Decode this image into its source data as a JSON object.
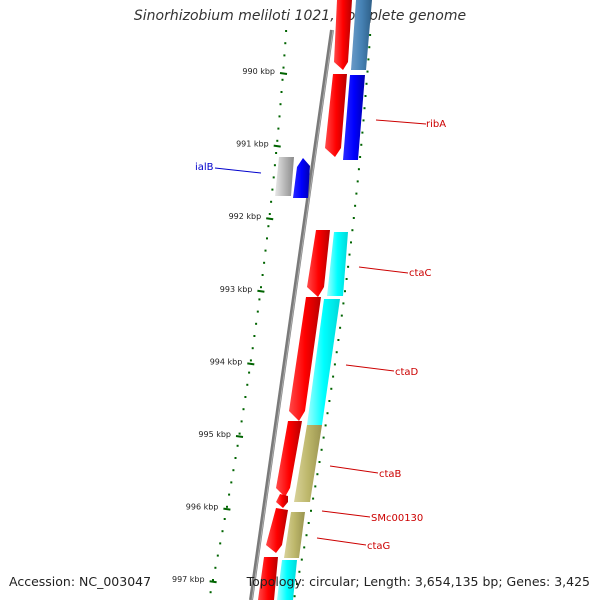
{
  "title": "Sinorhizobium meliloti 1021, complete genome",
  "accession": "Accession: NC_003047",
  "topology": "Topology: circular; Length: 3,654,135 bp; Genes: 3,425",
  "ticks": [
    {
      "kbp": 990,
      "label": "990 kbp"
    },
    {
      "kbp": 991,
      "label": "991 kbp"
    },
    {
      "kbp": 992,
      "label": "992 kbp"
    },
    {
      "kbp": 993,
      "label": "993 kbp"
    },
    {
      "kbp": 994,
      "label": "994 kbp"
    },
    {
      "kbp": 995,
      "label": "995 kbp"
    },
    {
      "kbp": 996,
      "label": "996 kbp"
    },
    {
      "kbp": 997,
      "label": "997 kbp"
    }
  ],
  "gene_labels": [
    {
      "name": "ialB",
      "color": "#0000cc"
    },
    {
      "name": "ribA",
      "color": "#cc0000"
    },
    {
      "name": "ctaC",
      "color": "#cc0000"
    },
    {
      "name": "ctaD",
      "color": "#cc0000"
    },
    {
      "name": "ctaB",
      "color": "#cc0000"
    },
    {
      "name": "SMc00130",
      "color": "#cc0000"
    },
    {
      "name": "ctaG",
      "color": "#cc0000"
    }
  ],
  "colors": {
    "cds": "#ff0000",
    "blast": "#0000ff",
    "blast_light": "#4682b4",
    "cyan": "#00ffff",
    "khaki": "#bdb76b",
    "tick": "#006400",
    "backbone": "#808080",
    "grey_feature": "#b0b0b0"
  }
}
